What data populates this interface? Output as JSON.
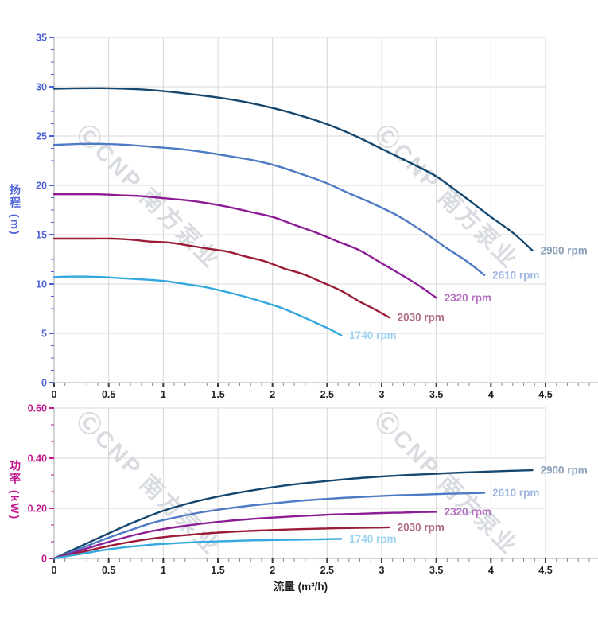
{
  "watermark": {
    "text": "ⒸCNP 南方泵业"
  },
  "palette": {
    "head_axis_color": "#4f63d6",
    "power_axis_color": "#c2188e",
    "x_tick_label_color": "#1f1f1f",
    "grid_color": "#d8d8d8",
    "axis_line_color": "#c6c6ca",
    "x_major_tick_color": "#3a3a3a",
    "x_minor_tick_color": "#8a8a8a"
  },
  "chart_data": [
    {
      "type": "line",
      "title": "",
      "xlabel": "流量 (m³/h)",
      "ylabel": "扬程 (m)",
      "xlim": [
        0,
        4.5
      ],
      "ylim": [
        0,
        35
      ],
      "grid": true,
      "legend_position": "curve-end-labels",
      "x_major_ticks": [
        0,
        0.5,
        1,
        1.5,
        2,
        2.5,
        3,
        3.5,
        4,
        4.5
      ],
      "x_tick_labels": [
        "0",
        "0.5",
        "1",
        "1.5",
        "2",
        "2.5",
        "3",
        "3.5",
        "4",
        "4.5"
      ],
      "x_minor_step": 0.1,
      "y_major_ticks": [
        0,
        5,
        10,
        15,
        20,
        25,
        30,
        35
      ],
      "y_tick_labels": [
        "0",
        "5",
        "10",
        "15",
        "20",
        "25",
        "30",
        "35"
      ],
      "y_minor_step": 1.25,
      "series": [
        {
          "name": "2900 rpm",
          "color": "#16486f",
          "label_color": "#8aa0ba",
          "x": [
            0,
            0.25,
            0.5,
            0.75,
            1,
            1.25,
            1.5,
            1.75,
            2,
            2.25,
            2.5,
            2.75,
            3,
            3.25,
            3.5,
            3.75,
            4,
            4.2,
            4.38
          ],
          "y": [
            29.8,
            29.85,
            29.85,
            29.75,
            29.55,
            29.25,
            28.9,
            28.45,
            27.85,
            27.1,
            26.2,
            25.05,
            23.7,
            22.35,
            20.9,
            18.9,
            16.8,
            15.2,
            13.4
          ]
        },
        {
          "name": "2610 rpm",
          "color": "#4e7bc4",
          "label_color": "#9fb5e2",
          "x": [
            0,
            0.23,
            0.45,
            0.68,
            0.9,
            1.13,
            1.35,
            1.58,
            1.8,
            2.03,
            2.25,
            2.48,
            2.7,
            2.93,
            3.15,
            3.38,
            3.6,
            3.78,
            3.94
          ],
          "y": [
            24.1,
            24.2,
            24.2,
            24.1,
            23.9,
            23.7,
            23.4,
            23.0,
            22.6,
            22.0,
            21.2,
            20.3,
            19.2,
            18.1,
            16.9,
            15.3,
            13.6,
            12.3,
            10.9
          ]
        },
        {
          "name": "2320 rpm",
          "color": "#8c1d95",
          "label_color": "#b36ec0",
          "x": [
            0,
            0.2,
            0.4,
            0.6,
            0.8,
            1,
            1.2,
            1.4,
            1.6,
            1.8,
            2,
            2.2,
            2.4,
            2.6,
            2.8,
            3,
            3.2,
            3.36,
            3.5
          ],
          "y": [
            19.1,
            19.1,
            19.1,
            19.0,
            18.9,
            18.7,
            18.5,
            18.2,
            17.8,
            17.3,
            16.8,
            16.0,
            15.2,
            14.3,
            13.4,
            12.1,
            10.8,
            9.7,
            8.6
          ]
        },
        {
          "name": "2030 rpm",
          "color": "#9c1c38",
          "label_color": "#b06e80",
          "x": [
            0,
            0.18,
            0.35,
            0.53,
            0.7,
            0.88,
            1.05,
            1.23,
            1.4,
            1.58,
            1.75,
            1.93,
            2.1,
            2.28,
            2.45,
            2.63,
            2.8,
            2.94,
            3.07
          ],
          "y": [
            14.6,
            14.6,
            14.6,
            14.6,
            14.5,
            14.3,
            14.2,
            13.9,
            13.6,
            13.3,
            12.8,
            12.3,
            11.6,
            11.0,
            10.2,
            9.3,
            8.2,
            7.4,
            6.6
          ]
        },
        {
          "name": "1740 rpm",
          "color": "#35a8e0",
          "label_color": "#9fd2f0",
          "x": [
            0,
            0.15,
            0.3,
            0.45,
            0.6,
            0.75,
            0.9,
            1.05,
            1.2,
            1.35,
            1.5,
            1.65,
            1.8,
            1.95,
            2.1,
            2.25,
            2.4,
            2.52,
            2.63
          ],
          "y": [
            10.7,
            10.75,
            10.75,
            10.7,
            10.6,
            10.5,
            10.4,
            10.25,
            10.0,
            9.75,
            9.4,
            9.0,
            8.55,
            8.05,
            7.5,
            6.8,
            6.05,
            5.45,
            4.8
          ]
        }
      ]
    },
    {
      "type": "line",
      "title": "",
      "xlabel": "流量 (m³/h)",
      "ylabel": "功率 (kW)",
      "xlim": [
        0,
        4.5
      ],
      "ylim": [
        0,
        0.6
      ],
      "grid": true,
      "legend_position": "curve-end-labels",
      "x_major_ticks": [
        0,
        0.5,
        1,
        1.5,
        2,
        2.5,
        3,
        3.5,
        4,
        4.5
      ],
      "x_tick_labels": [
        "0",
        "0.5",
        "1",
        "1.5",
        "2",
        "2.5",
        "3",
        "3.5",
        "4",
        "4.5"
      ],
      "x_minor_step": 0.1,
      "y_major_ticks": [
        0,
        0.2,
        0.4,
        0.6
      ],
      "y_tick_labels": [
        "0",
        "0.20",
        "0.40",
        "0.60"
      ],
      "y_minor_step": 0.066667,
      "series": [
        {
          "name": "2900 rpm",
          "color": "#16486f",
          "label_color": "#8aa0ba",
          "x": [
            0,
            0.25,
            0.5,
            0.75,
            1,
            1.25,
            1.5,
            1.75,
            2,
            2.25,
            2.5,
            2.75,
            3,
            3.25,
            3.5,
            3.75,
            4,
            4.2,
            4.38
          ],
          "y": [
            0,
            0.05,
            0.1,
            0.148,
            0.19,
            0.222,
            0.247,
            0.267,
            0.284,
            0.298,
            0.309,
            0.319,
            0.327,
            0.333,
            0.338,
            0.343,
            0.347,
            0.35,
            0.352
          ]
        },
        {
          "name": "2610 rpm",
          "color": "#4e7bc4",
          "label_color": "#9fb5e2",
          "x": [
            0,
            0.23,
            0.45,
            0.68,
            0.9,
            1.13,
            1.35,
            1.58,
            1.8,
            2.03,
            2.25,
            2.48,
            2.7,
            2.93,
            3.15,
            3.38,
            3.6,
            3.78,
            3.94
          ],
          "y": [
            0,
            0.037,
            0.075,
            0.11,
            0.142,
            0.165,
            0.184,
            0.199,
            0.211,
            0.221,
            0.23,
            0.237,
            0.243,
            0.248,
            0.252,
            0.255,
            0.258,
            0.26,
            0.262
          ]
        },
        {
          "name": "2320 rpm",
          "color": "#8c1d95",
          "label_color": "#b36ec0",
          "x": [
            0,
            0.2,
            0.4,
            0.6,
            0.8,
            1,
            1.2,
            1.4,
            1.6,
            1.8,
            2,
            2.2,
            2.4,
            2.6,
            2.8,
            3,
            3.2,
            3.36,
            3.5
          ],
          "y": [
            0,
            0.026,
            0.053,
            0.078,
            0.1,
            0.117,
            0.13,
            0.141,
            0.15,
            0.157,
            0.163,
            0.168,
            0.172,
            0.176,
            0.178,
            0.181,
            0.183,
            0.185,
            0.186
          ]
        },
        {
          "name": "2030 rpm",
          "color": "#9c1c38",
          "label_color": "#b06e80",
          "x": [
            0,
            0.18,
            0.35,
            0.53,
            0.7,
            0.88,
            1.05,
            1.23,
            1.4,
            1.58,
            1.75,
            1.93,
            2.1,
            2.28,
            2.45,
            2.63,
            2.8,
            2.94,
            3.07
          ],
          "y": [
            0,
            0.018,
            0.035,
            0.052,
            0.066,
            0.078,
            0.087,
            0.094,
            0.1,
            0.105,
            0.109,
            0.112,
            0.115,
            0.117,
            0.119,
            0.121,
            0.122,
            0.123,
            0.124
          ]
        },
        {
          "name": "1740 rpm",
          "color": "#35a8e0",
          "label_color": "#9fd2f0",
          "x": [
            0,
            0.15,
            0.3,
            0.45,
            0.6,
            0.75,
            0.9,
            1.05,
            1.2,
            1.35,
            1.5,
            1.65,
            1.8,
            1.95,
            2.1,
            2.25,
            2.4,
            2.52,
            2.63
          ],
          "y": [
            0,
            0.011,
            0.022,
            0.033,
            0.042,
            0.049,
            0.055,
            0.059,
            0.063,
            0.066,
            0.068,
            0.07,
            0.072,
            0.073,
            0.074,
            0.075,
            0.076,
            0.077,
            0.078
          ]
        }
      ]
    }
  ]
}
